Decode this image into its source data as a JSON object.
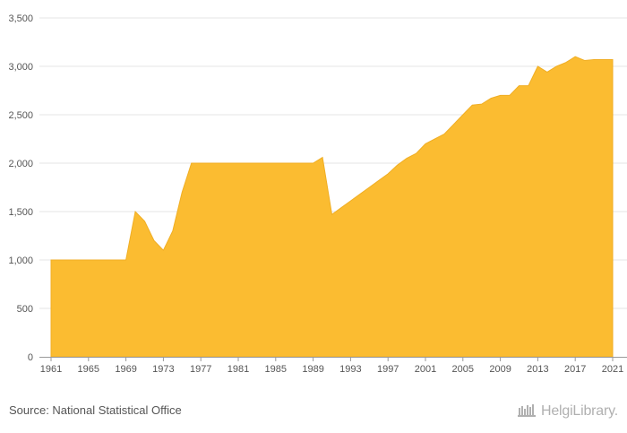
{
  "source_text": "Source: National Statistical Office",
  "brand": {
    "name": "HelgiLibrary.",
    "icon": "library-logo-icon"
  },
  "colors": {
    "area_fill": "#fbbc31",
    "area_stroke": "#f0ae24",
    "grid": "#e6e6e6",
    "axis": "#999999",
    "text": "#555555"
  },
  "chart_data": {
    "type": "area",
    "title": "",
    "xlabel": "",
    "ylabel": "",
    "ylim": [
      0,
      3500
    ],
    "xlim": [
      1961,
      2021
    ],
    "grid": true,
    "legend": "none",
    "y_ticks": [
      0,
      500,
      1000,
      1500,
      2000,
      2500,
      3000,
      3500
    ],
    "y_tick_labels": [
      "0",
      "500",
      "1,000",
      "1,500",
      "2,000",
      "2,500",
      "3,000",
      "3,500"
    ],
    "x_ticks": [
      1961,
      1965,
      1969,
      1973,
      1977,
      1981,
      1985,
      1989,
      1993,
      1997,
      2001,
      2005,
      2009,
      2013,
      2017,
      2021
    ],
    "x_tick_labels": [
      "1961",
      "1965",
      "1969",
      "1973",
      "1977",
      "1981",
      "1985",
      "1989",
      "1993",
      "1997",
      "2001",
      "2005",
      "2009",
      "2013",
      "2017",
      "2021"
    ],
    "series": [
      {
        "x": [
          1961,
          1962,
          1963,
          1964,
          1965,
          1966,
          1967,
          1968,
          1969,
          1970,
          1971,
          1972,
          1973,
          1974,
          1975,
          1976,
          1977,
          1978,
          1979,
          1980,
          1981,
          1982,
          1983,
          1984,
          1985,
          1986,
          1987,
          1988,
          1989,
          1990,
          1991,
          1992,
          1993,
          1994,
          1995,
          1996,
          1997,
          1998,
          1999,
          2000,
          2001,
          2002,
          2003,
          2004,
          2005,
          2006,
          2007,
          2008,
          2009,
          2010,
          2011,
          2012,
          2013,
          2014,
          2015,
          2016,
          2017,
          2018,
          2019,
          2020,
          2021
        ],
        "values": [
          1000,
          1000,
          1000,
          1000,
          1000,
          1000,
          1000,
          1000,
          1000,
          1500,
          1400,
          1200,
          1100,
          1300,
          1700,
          2000,
          2000,
          2000,
          2000,
          2000,
          2000,
          2000,
          2000,
          2000,
          2000,
          2000,
          2000,
          2000,
          2000,
          2060,
          1470,
          1540,
          1610,
          1680,
          1750,
          1820,
          1890,
          1980,
          2050,
          2100,
          2200,
          2250,
          2300,
          2400,
          2500,
          2600,
          2610,
          2670,
          2700,
          2700,
          2800,
          2800,
          3000,
          2940,
          3000,
          3040,
          3100,
          3060,
          3070,
          3070,
          3070
        ]
      }
    ]
  }
}
